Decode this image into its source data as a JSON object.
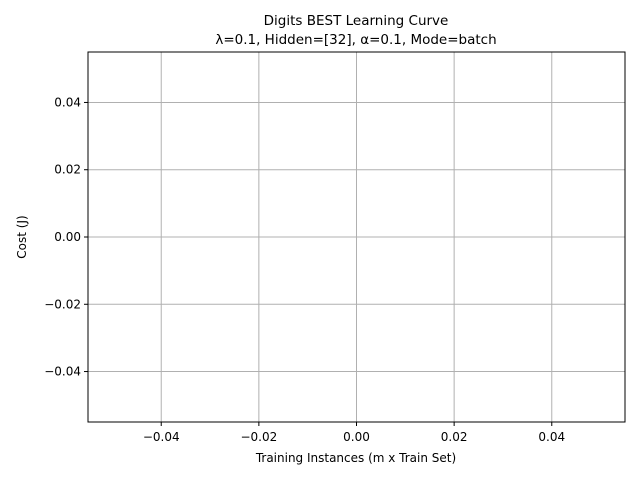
{
  "chart_data": {
    "type": "line",
    "title": "Digits BEST Learning Curve",
    "subtitle": "λ=0.1,  Hidden=[32], α=0.1, Mode=batch",
    "xlabel": "Training Instances (m x Train Set)",
    "ylabel": "Cost (J)",
    "xlim": [
      -0.055,
      0.055
    ],
    "ylim": [
      -0.055,
      0.055
    ],
    "x_ticks": [
      -0.04,
      -0.02,
      0.0,
      0.02,
      0.04
    ],
    "x_tick_labels": [
      "−0.04",
      "−0.02",
      "0.00",
      "0.02",
      "0.04"
    ],
    "y_ticks": [
      -0.04,
      -0.02,
      0.0,
      0.02,
      0.04
    ],
    "y_tick_labels": [
      "−0.04",
      "−0.02",
      "0.00",
      "0.02",
      "0.04"
    ],
    "grid": true,
    "series": [],
    "colors": {
      "grid": "#b0b0b0",
      "axes": "#000000",
      "background": "#ffffff"
    }
  }
}
